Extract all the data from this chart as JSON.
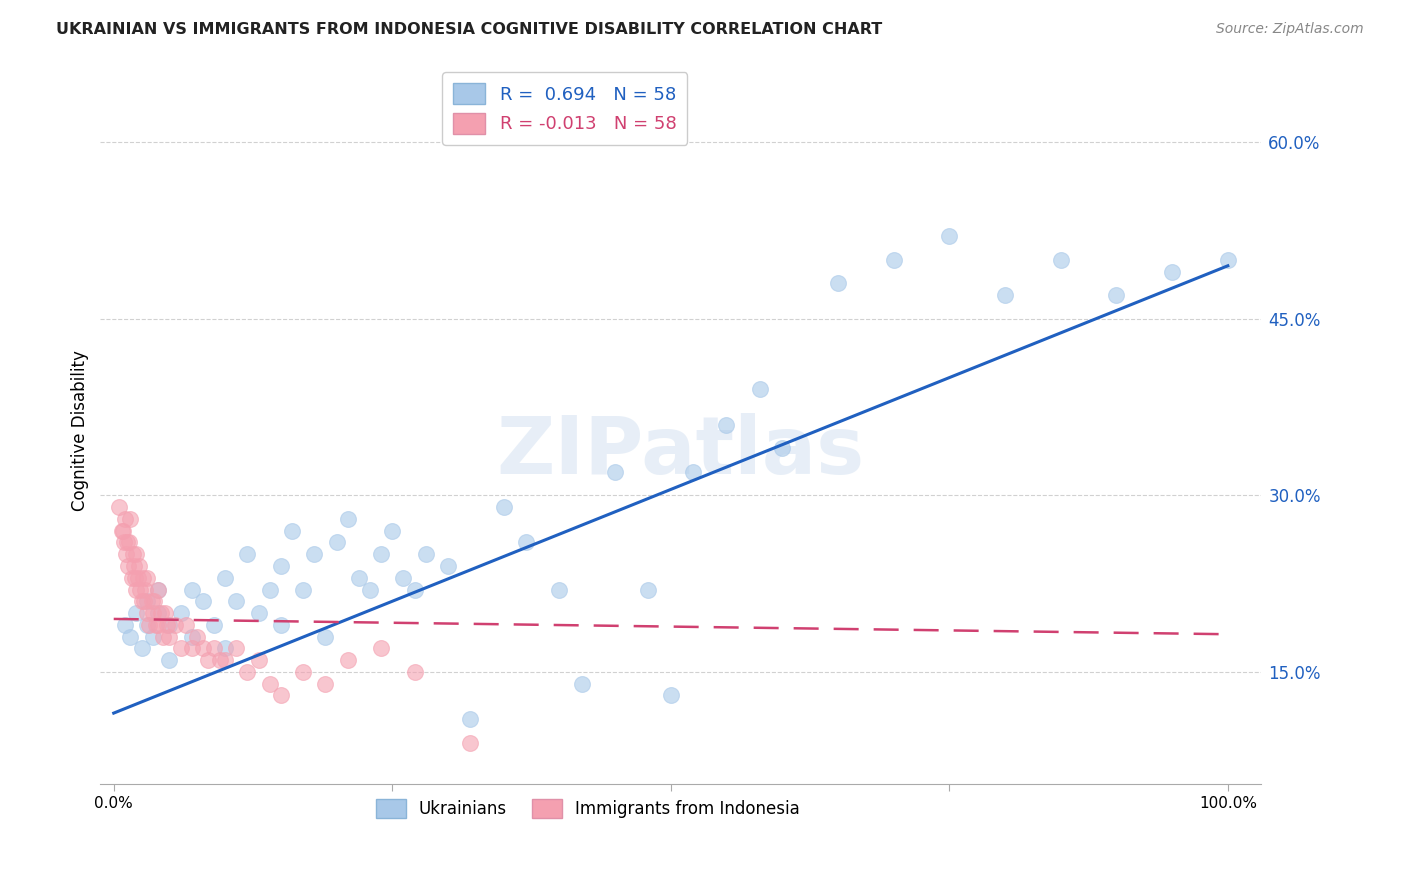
{
  "title": "UKRAINIAN VS IMMIGRANTS FROM INDONESIA COGNITIVE DISABILITY CORRELATION CHART",
  "source": "Source: ZipAtlas.com",
  "ylabel": "Cognitive Disability",
  "watermark": "ZIPatlas",
  "legend": {
    "R_blue": "0.694",
    "N_blue": "58",
    "R_pink": "-0.013",
    "N_pink": "58"
  },
  "y_ticks": [
    0.15,
    0.3,
    0.45,
    0.6
  ],
  "y_tick_labels": [
    "15.0%",
    "30.0%",
    "45.0%",
    "60.0%"
  ],
  "x_ticks": [
    0.0,
    0.25,
    0.5,
    0.75,
    1.0
  ],
  "x_tick_labels": [
    "0.0%",
    "",
    "",
    "",
    "100.0%"
  ],
  "blue_color": "#a8c8e8",
  "pink_color": "#f4a0b0",
  "line_blue": "#2060c0",
  "line_pink": "#d04070",
  "background": "#ffffff",
  "grid_color": "#cccccc",
  "blue_scatter_x": [
    0.01,
    0.015,
    0.02,
    0.025,
    0.03,
    0.03,
    0.035,
    0.04,
    0.04,
    0.05,
    0.05,
    0.06,
    0.07,
    0.07,
    0.08,
    0.09,
    0.1,
    0.1,
    0.11,
    0.12,
    0.13,
    0.14,
    0.15,
    0.15,
    0.16,
    0.17,
    0.18,
    0.19,
    0.2,
    0.21,
    0.22,
    0.23,
    0.24,
    0.25,
    0.26,
    0.27,
    0.28,
    0.3,
    0.32,
    0.35,
    0.37,
    0.4,
    0.42,
    0.45,
    0.48,
    0.5,
    0.52,
    0.55,
    0.58,
    0.6,
    0.65,
    0.7,
    0.75,
    0.8,
    0.85,
    0.9,
    0.95,
    1.0
  ],
  "blue_scatter_y": [
    0.19,
    0.18,
    0.2,
    0.17,
    0.19,
    0.21,
    0.18,
    0.2,
    0.22,
    0.19,
    0.16,
    0.2,
    0.18,
    0.22,
    0.21,
    0.19,
    0.23,
    0.17,
    0.21,
    0.25,
    0.2,
    0.22,
    0.19,
    0.24,
    0.27,
    0.22,
    0.25,
    0.18,
    0.26,
    0.28,
    0.23,
    0.22,
    0.25,
    0.27,
    0.23,
    0.22,
    0.25,
    0.24,
    0.11,
    0.29,
    0.26,
    0.22,
    0.14,
    0.32,
    0.22,
    0.13,
    0.32,
    0.36,
    0.39,
    0.34,
    0.48,
    0.5,
    0.52,
    0.47,
    0.5,
    0.47,
    0.49,
    0.5
  ],
  "pink_scatter_x": [
    0.005,
    0.007,
    0.008,
    0.009,
    0.01,
    0.011,
    0.012,
    0.013,
    0.014,
    0.015,
    0.016,
    0.017,
    0.018,
    0.019,
    0.02,
    0.02,
    0.022,
    0.023,
    0.024,
    0.025,
    0.026,
    0.027,
    0.028,
    0.03,
    0.03,
    0.032,
    0.034,
    0.035,
    0.036,
    0.038,
    0.04,
    0.04,
    0.042,
    0.044,
    0.046,
    0.048,
    0.05,
    0.055,
    0.06,
    0.065,
    0.07,
    0.075,
    0.08,
    0.085,
    0.09,
    0.095,
    0.1,
    0.11,
    0.12,
    0.13,
    0.14,
    0.15,
    0.17,
    0.19,
    0.21,
    0.24,
    0.27,
    0.32
  ],
  "pink_scatter_y": [
    0.29,
    0.27,
    0.27,
    0.26,
    0.28,
    0.25,
    0.26,
    0.24,
    0.26,
    0.28,
    0.23,
    0.25,
    0.24,
    0.23,
    0.22,
    0.25,
    0.23,
    0.24,
    0.22,
    0.21,
    0.23,
    0.21,
    0.22,
    0.2,
    0.23,
    0.19,
    0.21,
    0.2,
    0.21,
    0.19,
    0.19,
    0.22,
    0.2,
    0.18,
    0.2,
    0.19,
    0.18,
    0.19,
    0.17,
    0.19,
    0.17,
    0.18,
    0.17,
    0.16,
    0.17,
    0.16,
    0.16,
    0.17,
    0.15,
    0.16,
    0.14,
    0.13,
    0.15,
    0.14,
    0.16,
    0.17,
    0.15,
    0.09
  ],
  "blue_line_x": [
    0.0,
    1.0
  ],
  "blue_line_y_start": 0.115,
  "blue_line_y_end": 0.495,
  "pink_line_x": [
    0.0,
    1.0
  ],
  "pink_line_y_start": 0.195,
  "pink_line_y_end": 0.182
}
